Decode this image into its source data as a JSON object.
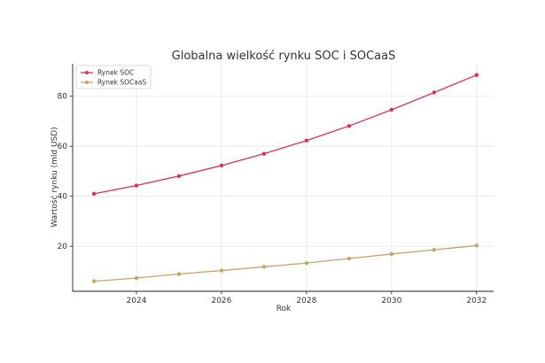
{
  "chart_data": {
    "type": "line",
    "title": "Globalna wielkość rynku SOC i SOCaaS",
    "xlabel": "Rok",
    "ylabel": "Wartość rynku (mld USD)",
    "x": [
      2023,
      2024,
      2025,
      2026,
      2027,
      2028,
      2029,
      2030,
      2031,
      2032
    ],
    "xlim": [
      2022.5,
      2032.4
    ],
    "ylim": [
      2,
      93
    ],
    "xticks": [
      2024,
      2026,
      2028,
      2030,
      2032
    ],
    "yticks": [
      20,
      40,
      60,
      80
    ],
    "grid": true,
    "legend_position": "top-left",
    "series": [
      {
        "name": "Rynek SOC",
        "color": "#d6335b",
        "values": [
          41.0,
          44.3,
          48.1,
          52.3,
          57.0,
          62.3,
          68.1,
          74.6,
          81.5,
          88.5
        ]
      },
      {
        "name": "Rynek SOCaaS",
        "color": "#c4a46e",
        "values": [
          6.0,
          7.3,
          8.9,
          10.3,
          11.8,
          13.3,
          15.1,
          16.9,
          18.6,
          20.3
        ]
      }
    ]
  }
}
